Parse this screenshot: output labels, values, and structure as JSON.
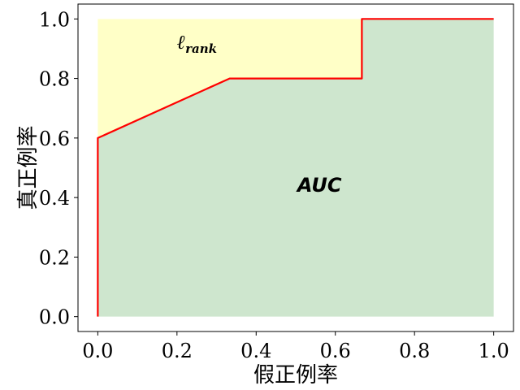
{
  "chart_data": {
    "type": "line",
    "title": "",
    "xlabel": "假正例率",
    "ylabel": "真正例率",
    "xlim": [
      -0.05,
      1.05
    ],
    "ylim": [
      -0.05,
      1.05
    ],
    "xticks": [
      0.0,
      0.2,
      0.4,
      0.6,
      0.8,
      1.0
    ],
    "yticks": [
      0.0,
      0.2,
      0.4,
      0.6,
      0.8,
      1.0
    ],
    "xtick_labels": [
      "0.0",
      "0.2",
      "0.4",
      "0.6",
      "0.8",
      "1.0"
    ],
    "ytick_labels": [
      "0.0",
      "0.2",
      "0.4",
      "0.6",
      "0.8",
      "1.0"
    ],
    "grid": false,
    "series": [
      {
        "x": [
          0.0,
          0.0,
          0.333,
          0.667,
          0.667,
          1.0
        ],
        "y": [
          0.0,
          0.6,
          0.8,
          0.8,
          1.0,
          1.0
        ],
        "color": "#ff0000"
      }
    ],
    "fills": [
      {
        "region": "under-curve",
        "color": "#8bc48b",
        "opacity": 0.42
      },
      {
        "region": "above-curve",
        "color": "#ffff99",
        "opacity": 0.55
      }
    ],
    "annotations": {
      "auc": {
        "text": "AUC",
        "x": 0.56,
        "y": 0.42
      },
      "rank": {
        "main": "ℓ",
        "sub": "rank",
        "x": 0.2,
        "y": 0.9
      }
    }
  }
}
